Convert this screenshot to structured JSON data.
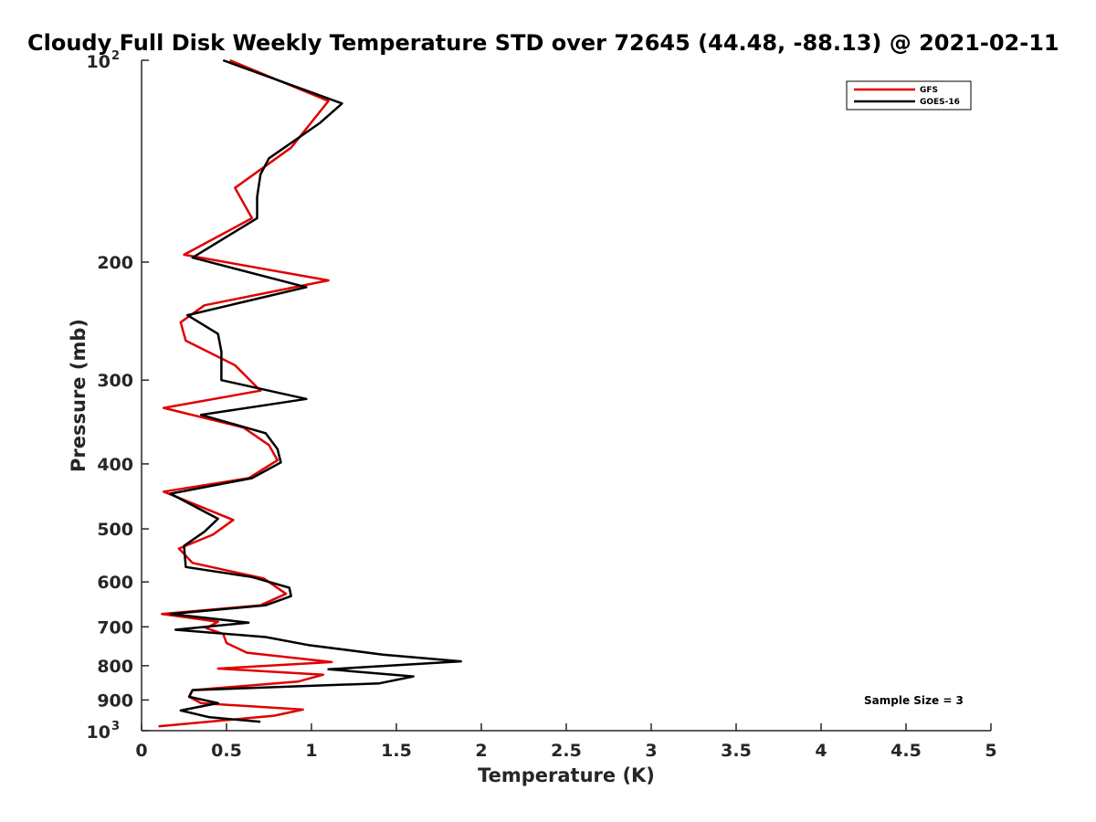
{
  "chart_data": {
    "type": "line",
    "title": "Cloudy Full Disk Weekly Temperature STD over 72645 (44.48, -88.13) @ 2021-02-11",
    "xlabel": "Temperature (K)",
    "ylabel": "Pressure (mb)",
    "xlim": [
      0,
      5
    ],
    "ylim": [
      100,
      1000
    ],
    "y_scale": "log",
    "y_reversed": true,
    "grid": false,
    "legend_position": "top-right",
    "x_ticks": [
      {
        "value": 0,
        "label": "0"
      },
      {
        "value": 0.5,
        "label": "0.5"
      },
      {
        "value": 1,
        "label": "1"
      },
      {
        "value": 1.5,
        "label": "1.5"
      },
      {
        "value": 2,
        "label": "2"
      },
      {
        "value": 2.5,
        "label": "2.5"
      },
      {
        "value": 3,
        "label": "3"
      },
      {
        "value": 3.5,
        "label": "3.5"
      },
      {
        "value": 4,
        "label": "4"
      },
      {
        "value": 4.5,
        "label": "4.5"
      },
      {
        "value": 5,
        "label": "5"
      }
    ],
    "y_ticks": [
      {
        "value": 100,
        "base": "10",
        "exp": "2"
      },
      {
        "value": 200,
        "label": "200"
      },
      {
        "value": 300,
        "label": "300"
      },
      {
        "value": 400,
        "label": "400"
      },
      {
        "value": 500,
        "label": "500"
      },
      {
        "value": 600,
        "label": "600"
      },
      {
        "value": 700,
        "label": "700"
      },
      {
        "value": 800,
        "label": "800"
      },
      {
        "value": 900,
        "label": "900"
      },
      {
        "value": 1000,
        "base": "10",
        "exp": "3"
      }
    ],
    "series": [
      {
        "name": "GFS",
        "color": "#e00000",
        "points": [
          [
            0.52,
            100
          ],
          [
            1.1,
            115
          ],
          [
            0.88,
            135
          ],
          [
            0.55,
            155
          ],
          [
            0.65,
            172
          ],
          [
            0.25,
            195
          ],
          [
            1.1,
            213
          ],
          [
            0.37,
            232
          ],
          [
            0.23,
            246
          ],
          [
            0.26,
            262
          ],
          [
            0.55,
            285
          ],
          [
            0.7,
            311
          ],
          [
            0.13,
            330
          ],
          [
            0.6,
            353
          ],
          [
            0.75,
            375
          ],
          [
            0.8,
            395
          ],
          [
            0.63,
            420
          ],
          [
            0.13,
            440
          ],
          [
            0.54,
            485
          ],
          [
            0.42,
            510
          ],
          [
            0.22,
            535
          ],
          [
            0.3,
            562
          ],
          [
            0.72,
            593
          ],
          [
            0.85,
            625
          ],
          [
            0.7,
            650
          ],
          [
            0.12,
            670
          ],
          [
            0.45,
            688
          ],
          [
            0.38,
            703
          ],
          [
            0.48,
            717
          ],
          [
            0.5,
            740
          ],
          [
            0.62,
            765
          ],
          [
            1.12,
            790
          ],
          [
            0.45,
            808
          ],
          [
            1.07,
            825
          ],
          [
            0.92,
            845
          ],
          [
            0.3,
            870
          ],
          [
            0.28,
            890
          ],
          [
            0.35,
            910
          ],
          [
            0.95,
            930
          ],
          [
            0.78,
            950
          ],
          [
            0.1,
            985
          ]
        ]
      },
      {
        "name": "GOES-16",
        "color": "#000000",
        "points": [
          [
            0.48,
            100
          ],
          [
            1.18,
            116
          ],
          [
            1.05,
            124
          ],
          [
            0.75,
            140
          ],
          [
            0.7,
            148
          ],
          [
            0.68,
            160
          ],
          [
            0.68,
            172
          ],
          [
            0.3,
            197
          ],
          [
            0.97,
            218
          ],
          [
            0.27,
            240
          ],
          [
            0.45,
            256
          ],
          [
            0.47,
            272
          ],
          [
            0.47,
            300
          ],
          [
            0.97,
            320
          ],
          [
            0.35,
            338
          ],
          [
            0.73,
            360
          ],
          [
            0.8,
            380
          ],
          [
            0.82,
            398
          ],
          [
            0.65,
            420
          ],
          [
            0.17,
            443
          ],
          [
            0.45,
            483
          ],
          [
            0.37,
            505
          ],
          [
            0.25,
            530
          ],
          [
            0.26,
            570
          ],
          [
            0.65,
            590
          ],
          [
            0.87,
            612
          ],
          [
            0.88,
            630
          ],
          [
            0.73,
            650
          ],
          [
            0.17,
            670
          ],
          [
            0.63,
            690
          ],
          [
            0.2,
            707
          ],
          [
            0.73,
            725
          ],
          [
            0.98,
            745
          ],
          [
            1.42,
            770
          ],
          [
            1.88,
            788
          ],
          [
            1.1,
            810
          ],
          [
            1.6,
            830
          ],
          [
            1.4,
            850
          ],
          [
            0.3,
            870
          ],
          [
            0.28,
            890
          ],
          [
            0.45,
            910
          ],
          [
            0.23,
            933
          ],
          [
            0.4,
            955
          ],
          [
            0.7,
            970
          ]
        ]
      }
    ],
    "annotation": "Sample Size = 3"
  }
}
